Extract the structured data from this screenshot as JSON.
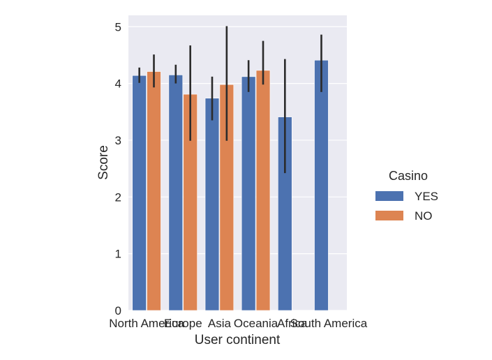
{
  "chart_data": {
    "type": "bar",
    "title": "",
    "xlabel": "User continent",
    "ylabel": "Score",
    "ylim": [
      0,
      5.2
    ],
    "yticks": [
      0,
      1,
      2,
      3,
      4,
      5
    ],
    "grid": true,
    "legend_position": "right",
    "legend_title": "Casino",
    "categories": [
      "North America",
      "Europe",
      "Asia",
      "Oceania",
      "Africa",
      "South America"
    ],
    "series": [
      {
        "name": "YES",
        "color": "#4c72b0",
        "values": [
          4.14,
          4.15,
          3.74,
          4.12,
          3.41,
          4.41
        ],
        "ci_low": [
          4.01,
          4.0,
          3.35,
          3.85,
          2.42,
          3.85
        ],
        "ci_high": [
          4.28,
          4.33,
          4.12,
          4.41,
          4.43,
          4.86
        ]
      },
      {
        "name": "NO",
        "color": "#dd8452",
        "values": [
          4.21,
          3.81,
          3.98,
          4.23,
          null,
          null
        ],
        "ci_low": [
          3.93,
          2.99,
          2.99,
          3.98,
          null,
          null
        ],
        "ci_high": [
          4.51,
          4.67,
          5.01,
          4.75,
          null,
          null
        ]
      }
    ]
  }
}
